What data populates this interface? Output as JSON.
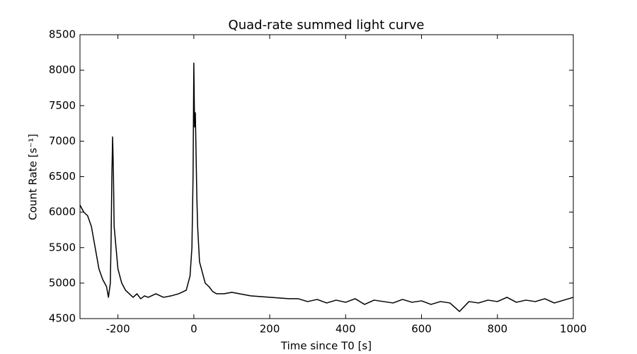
{
  "chart_data": {
    "type": "line",
    "title": "Quad-rate summed light curve",
    "xlabel": "Time since T0 [s]",
    "ylabel": "Count Rate [s⁻¹]",
    "x": [
      -300,
      -290,
      -280,
      -270,
      -260,
      -250,
      -240,
      -230,
      -225,
      -220,
      -218,
      -216,
      -214,
      -212,
      -210,
      -205,
      -200,
      -190,
      -180,
      -170,
      -160,
      -150,
      -140,
      -130,
      -120,
      -100,
      -80,
      -60,
      -40,
      -20,
      -10,
      -5,
      -2,
      0,
      2,
      4,
      6,
      8,
      10,
      15,
      20,
      30,
      40,
      50,
      60,
      80,
      100,
      120,
      150,
      200,
      250,
      275,
      300,
      325,
      350,
      375,
      400,
      425,
      450,
      475,
      500,
      525,
      550,
      575,
      600,
      625,
      650,
      675,
      700,
      725,
      750,
      775,
      800,
      825,
      850,
      875,
      900,
      925,
      950,
      975,
      1000
    ],
    "series": [
      {
        "name": "light curve",
        "color": "#000000",
        "values": [
          6100,
          6000,
          5950,
          5800,
          5500,
          5200,
          5050,
          4950,
          4800,
          5000,
          5600,
          6500,
          7060,
          6600,
          5800,
          5500,
          5200,
          5000,
          4900,
          4850,
          4800,
          4850,
          4780,
          4820,
          4800,
          4850,
          4800,
          4820,
          4850,
          4900,
          5100,
          5500,
          6500,
          8100,
          7200,
          7400,
          6800,
          6200,
          5800,
          5300,
          5200,
          5000,
          4950,
          4880,
          4850,
          4850,
          4870,
          4850,
          4820,
          4800,
          4780,
          4780,
          4740,
          4770,
          4720,
          4760,
          4730,
          4780,
          4700,
          4760,
          4740,
          4720,
          4770,
          4730,
          4750,
          4700,
          4740,
          4720,
          4600,
          4740,
          4720,
          4760,
          4740,
          4800,
          4730,
          4760,
          4740,
          4780,
          4720,
          4760,
          4800
        ]
      }
    ],
    "xlim": [
      -300,
      1000
    ],
    "xticks": [
      -200,
      0,
      200,
      400,
      600,
      800,
      1000
    ],
    "ylim": [
      4500,
      8500
    ],
    "yticks": [
      4500,
      5000,
      5500,
      6000,
      6500,
      7000,
      7500,
      8000,
      8500
    ]
  }
}
